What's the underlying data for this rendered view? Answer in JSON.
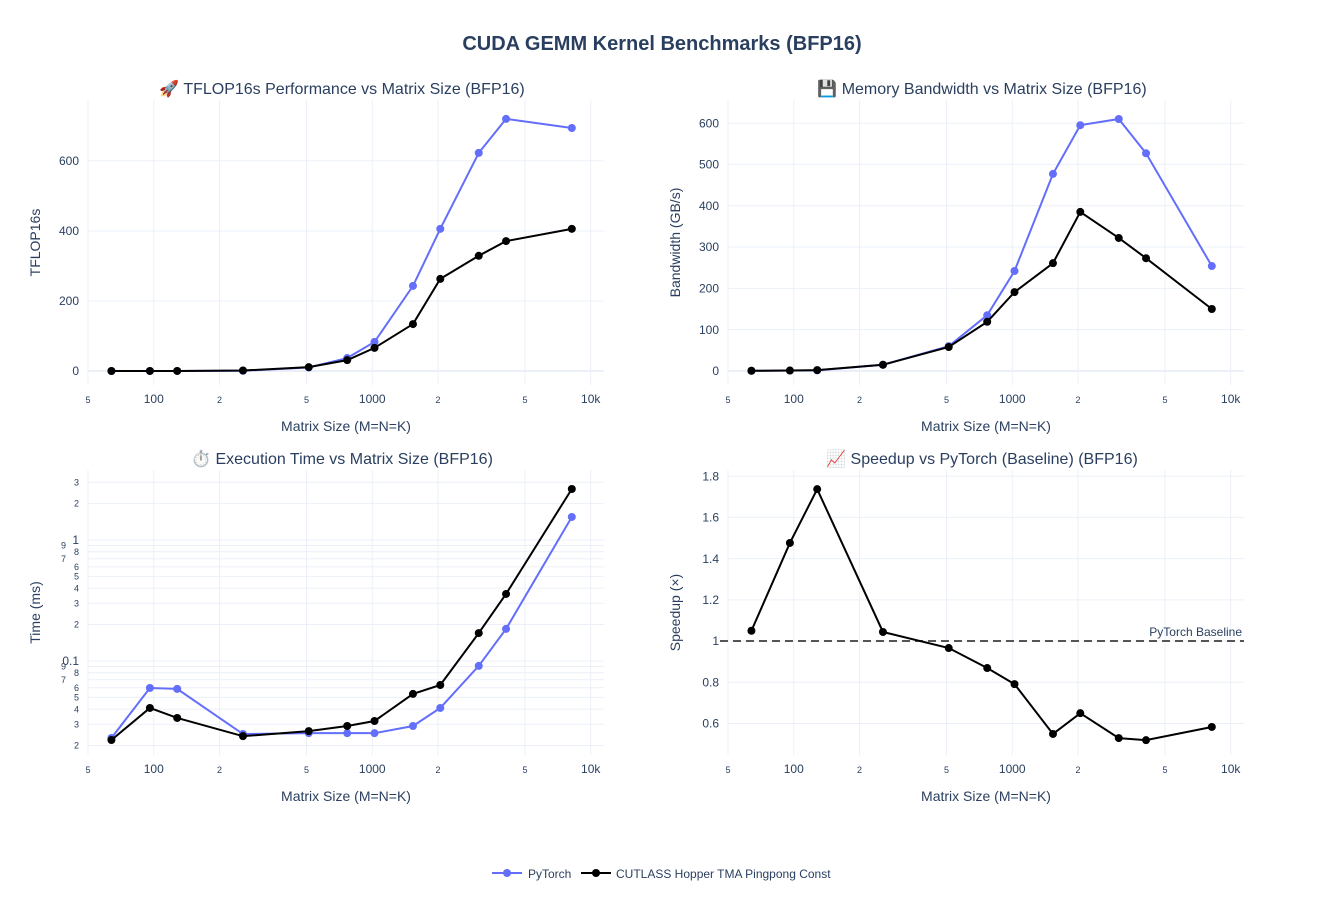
{
  "title": "CUDA GEMM Kernel Benchmarks (BFP16)",
  "colors": {
    "PyTorch": "#636efa",
    "CUTLASS": "#000000",
    "grid": "#ebf0f8",
    "text": "#2a3f5f",
    "baseline": "#555555"
  },
  "legend": {
    "placement": "bottom-center",
    "items": [
      "PyTorch",
      "CUTLASS Hopper TMA Pingpong Const"
    ]
  },
  "chart_data": [
    {
      "type": "line",
      "title": "🚀 TFLOP16s Performance vs Matrix Size (BFP16)",
      "xlabel": "Matrix Size (M=N=K)",
      "ylabel": "TFLOP16s",
      "xscale": "log",
      "yscale": "linear",
      "grid": true,
      "xlim": [
        50,
        11500
      ],
      "ylim": [
        -40,
        774
      ],
      "xticks": [
        {
          "v": 50,
          "l": "5",
          "minor": true
        },
        {
          "v": 100,
          "l": "100"
        },
        {
          "v": 200,
          "l": "2",
          "minor": true
        },
        {
          "v": 500,
          "l": "5",
          "minor": true
        },
        {
          "v": 1000,
          "l": "1000"
        },
        {
          "v": 2000,
          "l": "2",
          "minor": true
        },
        {
          "v": 5000,
          "l": "5",
          "minor": true
        },
        {
          "v": 10000,
          "l": "10k"
        }
      ],
      "yticks": [
        {
          "v": 0,
          "l": "0"
        },
        {
          "v": 200,
          "l": "200"
        },
        {
          "v": 400,
          "l": "400"
        },
        {
          "v": 600,
          "l": "600"
        }
      ],
      "x": [
        64,
        96,
        128,
        256,
        512,
        768,
        1024,
        1536,
        2048,
        3072,
        4096,
        8192
      ],
      "series": [
        {
          "name": "PyTorch",
          "values": [
            0.01,
            0.03,
            0.07,
            0.6,
            10,
            37,
            83,
            243,
            406,
            623,
            720,
            694
          ]
        },
        {
          "name": "CUTLASS Hopper TMA Pingpong Const",
          "values": [
            0.01,
            0.04,
            0.12,
            1.4,
            11,
            31,
            66,
            134,
            263,
            329,
            371,
            406
          ]
        }
      ]
    },
    {
      "type": "line",
      "title": "💾 Memory Bandwidth vs Matrix Size (BFP16)",
      "xlabel": "Matrix Size (M=N=K)",
      "ylabel": "Bandwidth (GB/s)",
      "xscale": "log",
      "yscale": "linear",
      "grid": true,
      "xlim": [
        50,
        11500
      ],
      "ylim": [
        -34,
        656
      ],
      "xticks": [
        {
          "v": 50,
          "l": "5",
          "minor": true
        },
        {
          "v": 100,
          "l": "100"
        },
        {
          "v": 200,
          "l": "2",
          "minor": true
        },
        {
          "v": 500,
          "l": "5",
          "minor": true
        },
        {
          "v": 1000,
          "l": "1000"
        },
        {
          "v": 2000,
          "l": "2",
          "minor": true
        },
        {
          "v": 5000,
          "l": "5",
          "minor": true
        },
        {
          "v": 10000,
          "l": "10k"
        }
      ],
      "yticks": [
        {
          "v": 0,
          "l": "0"
        },
        {
          "v": 100,
          "l": "100"
        },
        {
          "v": 200,
          "l": "200"
        },
        {
          "v": 300,
          "l": "300"
        },
        {
          "v": 400,
          "l": "400"
        },
        {
          "v": 500,
          "l": "500"
        },
        {
          "v": 600,
          "l": "600"
        }
      ],
      "x": [
        64,
        96,
        128,
        256,
        512,
        768,
        1024,
        1536,
        2048,
        3072,
        4096,
        8192
      ],
      "series": [
        {
          "name": "PyTorch",
          "values": [
            0.5,
            1,
            1.5,
            15,
            60,
            135,
            242,
            477,
            595,
            610,
            527,
            254
          ]
        },
        {
          "name": "CUTLASS Hopper TMA Pingpong Const",
          "values": [
            0.5,
            1,
            2,
            15,
            58,
            119,
            191,
            261,
            385,
            322,
            273,
            150
          ]
        }
      ]
    },
    {
      "type": "line",
      "title": "⏱️ Execution Time vs Matrix Size (BFP16)",
      "xlabel": "Matrix Size (M=N=K)",
      "ylabel": "Time (ms)",
      "xscale": "log",
      "yscale": "log",
      "grid": true,
      "xlim": [
        50,
        11500
      ],
      "ylim": [
        0.0167,
        3.79
      ],
      "xticks": [
        {
          "v": 50,
          "l": "5",
          "minor": true
        },
        {
          "v": 100,
          "l": "100"
        },
        {
          "v": 200,
          "l": "2",
          "minor": true
        },
        {
          "v": 500,
          "l": "5",
          "minor": true
        },
        {
          "v": 1000,
          "l": "1000"
        },
        {
          "v": 2000,
          "l": "2",
          "minor": true
        },
        {
          "v": 5000,
          "l": "5",
          "minor": true
        },
        {
          "v": 10000,
          "l": "10k"
        }
      ],
      "yticks": [
        {
          "v": 0.02,
          "l": "2",
          "minor": true
        },
        {
          "v": 0.03,
          "l": "3",
          "minor": true
        },
        {
          "v": 0.04,
          "l": "4",
          "minor": true
        },
        {
          "v": 0.05,
          "l": "5",
          "minor": true
        },
        {
          "v": 0.06,
          "l": "6",
          "minor": true
        },
        {
          "v": 0.07,
          "l": "7",
          "minor": true
        },
        {
          "v": 0.08,
          "l": "8",
          "minor": true
        },
        {
          "v": 0.09,
          "l": "9",
          "minor": true
        },
        {
          "v": 0.1,
          "l": "0.1"
        },
        {
          "v": 0.2,
          "l": "2",
          "minor": true
        },
        {
          "v": 0.3,
          "l": "3",
          "minor": true
        },
        {
          "v": 0.4,
          "l": "4",
          "minor": true
        },
        {
          "v": 0.5,
          "l": "5",
          "minor": true
        },
        {
          "v": 0.6,
          "l": "6",
          "minor": true
        },
        {
          "v": 0.7,
          "l": "7",
          "minor": true
        },
        {
          "v": 0.8,
          "l": "8",
          "minor": true
        },
        {
          "v": 0.9,
          "l": "9",
          "minor": true
        },
        {
          "v": 1,
          "l": "1"
        },
        {
          "v": 2,
          "l": "2",
          "minor": true
        },
        {
          "v": 3,
          "l": "3",
          "minor": true
        }
      ],
      "x": [
        64,
        96,
        128,
        256,
        512,
        768,
        1024,
        1536,
        2048,
        3072,
        4096,
        8192
      ],
      "series": [
        {
          "name": "PyTorch",
          "values": [
            0.0231,
            0.0598,
            0.0588,
            0.0249,
            0.0253,
            0.0253,
            0.0253,
            0.029,
            0.0409,
            0.091,
            0.184,
            1.55
          ]
        },
        {
          "name": "CUTLASS Hopper TMA Pingpong Const",
          "values": [
            0.0222,
            0.0409,
            0.0338,
            0.0239,
            0.0263,
            0.029,
            0.0319,
            0.0534,
            0.0633,
            0.17,
            0.358,
            2.64
          ]
        }
      ]
    },
    {
      "type": "line",
      "title": "📈 Speedup vs PyTorch (Baseline) (BFP16)",
      "xlabel": "Matrix Size (M=N=K)",
      "ylabel": "Speedup (×)",
      "xscale": "log",
      "yscale": "linear",
      "grid": true,
      "xlim": [
        50,
        11500
      ],
      "ylim": [
        0.447,
        1.83
      ],
      "xticks": [
        {
          "v": 50,
          "l": "5",
          "minor": true
        },
        {
          "v": 100,
          "l": "100"
        },
        {
          "v": 200,
          "l": "2",
          "minor": true
        },
        {
          "v": 500,
          "l": "5",
          "minor": true
        },
        {
          "v": 1000,
          "l": "1000"
        },
        {
          "v": 2000,
          "l": "2",
          "minor": true
        },
        {
          "v": 5000,
          "l": "5",
          "minor": true
        },
        {
          "v": 10000,
          "l": "10k"
        }
      ],
      "yticks": [
        {
          "v": 0.6,
          "l": "0.6"
        },
        {
          "v": 0.8,
          "l": "0.8"
        },
        {
          "v": 1,
          "l": "1"
        },
        {
          "v": 1.2,
          "l": "1.2"
        },
        {
          "v": 1.4,
          "l": "1.4"
        },
        {
          "v": 1.6,
          "l": "1.6"
        },
        {
          "v": 1.8,
          "l": "1.8"
        }
      ],
      "x": [
        64,
        96,
        128,
        256,
        512,
        768,
        1024,
        1536,
        2048,
        3072,
        4096,
        8192
      ],
      "baseline": {
        "value": 1,
        "label": "PyTorch Baseline"
      },
      "series": [
        {
          "name": "CUTLASS Hopper TMA Pingpong Const",
          "values": [
            1.05,
            1.476,
            1.737,
            1.044,
            0.966,
            0.869,
            0.791,
            0.549,
            0.65,
            0.529,
            0.519,
            0.583
          ]
        }
      ]
    }
  ]
}
